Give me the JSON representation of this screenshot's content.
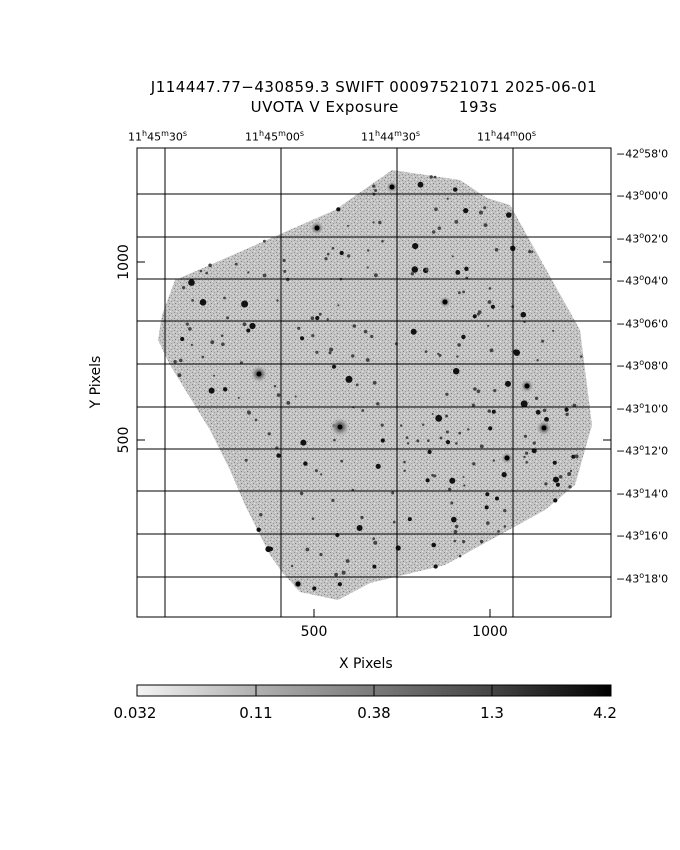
{
  "header": {
    "line1": "J114447.77−430859.3 SWIFT 00097521071 2025-06-01",
    "line2_label": "UVOTA V Exposure",
    "line2_value": "193s"
  },
  "axes": {
    "x_label": "X Pixels",
    "y_label": "Y Pixels",
    "x_ticks": [
      "500",
      "1000"
    ],
    "y_ticks": [
      "1000",
      "500"
    ]
  },
  "ra_ticks": [
    {
      "h": "11",
      "m": "45",
      "s": "30"
    },
    {
      "h": "11",
      "m": "45",
      "s": "00"
    },
    {
      "h": "11",
      "m": "44",
      "s": "30"
    },
    {
      "h": "11",
      "m": "44",
      "s": "00"
    }
  ],
  "dec_ticks": [
    {
      "d": "−42",
      "m": "58",
      "s": "0"
    },
    {
      "d": "−43",
      "m": "00",
      "s": "0"
    },
    {
      "d": "−43",
      "m": "02",
      "s": "0"
    },
    {
      "d": "−43",
      "m": "04",
      "s": "0"
    },
    {
      "d": "−43",
      "m": "06",
      "s": "0"
    },
    {
      "d": "−43",
      "m": "08",
      "s": "0"
    },
    {
      "d": "−43",
      "m": "10",
      "s": "0"
    },
    {
      "d": "−43",
      "m": "12",
      "s": "0"
    },
    {
      "d": "−43",
      "m": "14",
      "s": "0"
    },
    {
      "d": "−43",
      "m": "16",
      "s": "0"
    },
    {
      "d": "−43",
      "m": "18",
      "s": "0"
    }
  ],
  "colorbar": {
    "ticks": [
      "0.032",
      "0.11",
      "0.38",
      "1.3",
      "4.2"
    ]
  },
  "colors": {
    "background": "#ffffff",
    "field": "#b8b8b8",
    "grid": "#000000"
  }
}
